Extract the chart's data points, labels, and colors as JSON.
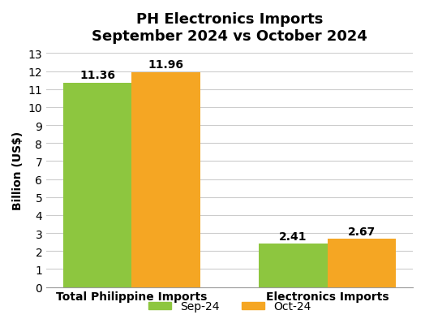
{
  "title": "PH Electronics Imports\nSeptember 2024 vs October 2024",
  "categories": [
    "Total Philippine Imports",
    "Electronics Imports"
  ],
  "sep_values": [
    11.36,
    2.41
  ],
  "oct_values": [
    11.96,
    2.67
  ],
  "sep_color": "#8DC63F",
  "oct_color": "#F5A623",
  "ylabel": "Billion (US$)",
  "ylim": [
    0,
    13
  ],
  "yticks": [
    0,
    1,
    2,
    3,
    4,
    5,
    6,
    7,
    8,
    9,
    10,
    11,
    12,
    13
  ],
  "legend_labels": [
    "Sep-24",
    "Oct-24"
  ],
  "bar_width": 0.35,
  "label_fontsize": 10,
  "title_fontsize": 13,
  "tick_fontsize": 10,
  "ylabel_fontsize": 10,
  "background_color": "#ffffff",
  "grid_color": "#cccccc"
}
